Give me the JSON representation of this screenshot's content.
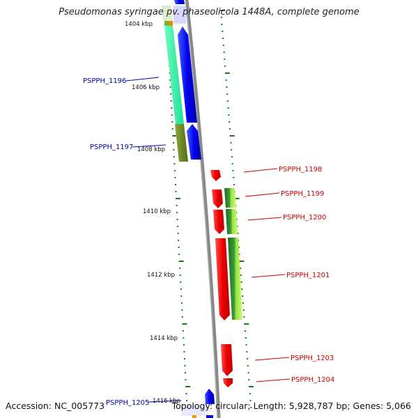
{
  "title": "Pseudomonas syringae pv. phaseolicola 1448A, complete genome",
  "footer": {
    "accession": "Accession: NC_005773",
    "topology": "Topology: circular; Length: 5,928,787 bp; Genes: 5,066"
  },
  "scale_labels": [
    {
      "text": "1404 kbp",
      "pos": 1404
    },
    {
      "text": "1406 kbp",
      "pos": 1406
    },
    {
      "text": "1408 kbp",
      "pos": 1408
    },
    {
      "text": "1410 kbp",
      "pos": 1410
    },
    {
      "text": "1412 kbp",
      "pos": 1412
    },
    {
      "text": "1414 kbp",
      "pos": 1414
    },
    {
      "text": "1416 kbp",
      "pos": 1416
    }
  ],
  "genes": [
    {
      "name": "PSPPH_1196",
      "strand": "-",
      "color": "#0000cc"
    },
    {
      "name": "PSPPH_1197",
      "strand": "-",
      "color": "#0000cc"
    },
    {
      "name": "PSPPH_1198",
      "strand": "+",
      "color": "#cc0000"
    },
    {
      "name": "PSPPH_1199",
      "strand": "+",
      "color": "#cc0000"
    },
    {
      "name": "PSPPH_1200",
      "strand": "+",
      "color": "#cc0000"
    },
    {
      "name": "PSPPH_1201",
      "strand": "+",
      "color": "#cc0000"
    },
    {
      "name": "PSPPH_1203",
      "strand": "+",
      "color": "#cc0000"
    },
    {
      "name": "PSPPH_1204",
      "strand": "+",
      "color": "#cc0000"
    },
    {
      "name": "PSPPH_1205",
      "strand": "-",
      "color": "#0000cc"
    }
  ],
  "colors": {
    "forward": "#ff0000",
    "reverse": "#0000ff",
    "backbone": "#888888",
    "scale_dots": "#1a7a1a",
    "cog_teal": "#33eea0",
    "cog_olive": "#6b8b23",
    "cog_green": "#66cc33"
  }
}
